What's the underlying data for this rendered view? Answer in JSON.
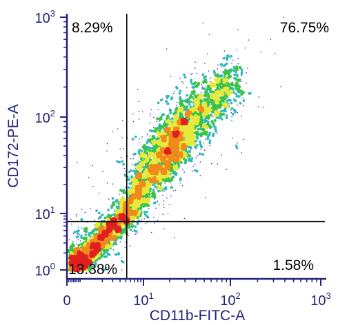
{
  "chart_data": {
    "type": "scatter",
    "subtype": "flow-cytometry-density-dot-plot",
    "xlabel": "CD11b-FITC-A",
    "ylabel": "CD172-PE-A",
    "x_scale": "log",
    "y_scale": "log",
    "xlim": [
      0,
      1000
    ],
    "ylim": [
      1,
      1000
    ],
    "x_ticks": [
      {
        "value": 0,
        "base": "0",
        "exp": ""
      },
      {
        "value": 10,
        "base": "10",
        "exp": "1"
      },
      {
        "value": 100,
        "base": "10",
        "exp": "2"
      },
      {
        "value": 1000,
        "base": "10",
        "exp": "3"
      }
    ],
    "y_ticks": [
      {
        "value": 1,
        "base": "10",
        "exp": "0"
      },
      {
        "value": 10,
        "base": "10",
        "exp": "1"
      },
      {
        "value": 100,
        "base": "10",
        "exp": "2"
      },
      {
        "value": 1000,
        "base": "10",
        "exp": "3"
      }
    ],
    "gates": {
      "x": 5.2,
      "y": 7.2
    },
    "quadrants": [
      {
        "name": "upper-left",
        "label": "8.29%",
        "value": 8.29
      },
      {
        "name": "upper-right",
        "label": "76.75%",
        "value": 76.75
      },
      {
        "name": "lower-left",
        "label": "13.38%",
        "value": 13.38
      },
      {
        "name": "lower-right",
        "label": "1.58%",
        "value": 1.58
      }
    ],
    "population": {
      "main_center": [
        20,
        55
      ],
      "extent_low": [
        0.4,
        0.9
      ],
      "extent_high": [
        120,
        300
      ]
    },
    "density_colors": [
      "#3333bb",
      "#2fb8b8",
      "#39c24a",
      "#e8e83a",
      "#f08a1a",
      "#e02020"
    ],
    "grid": false,
    "legend": "none"
  }
}
